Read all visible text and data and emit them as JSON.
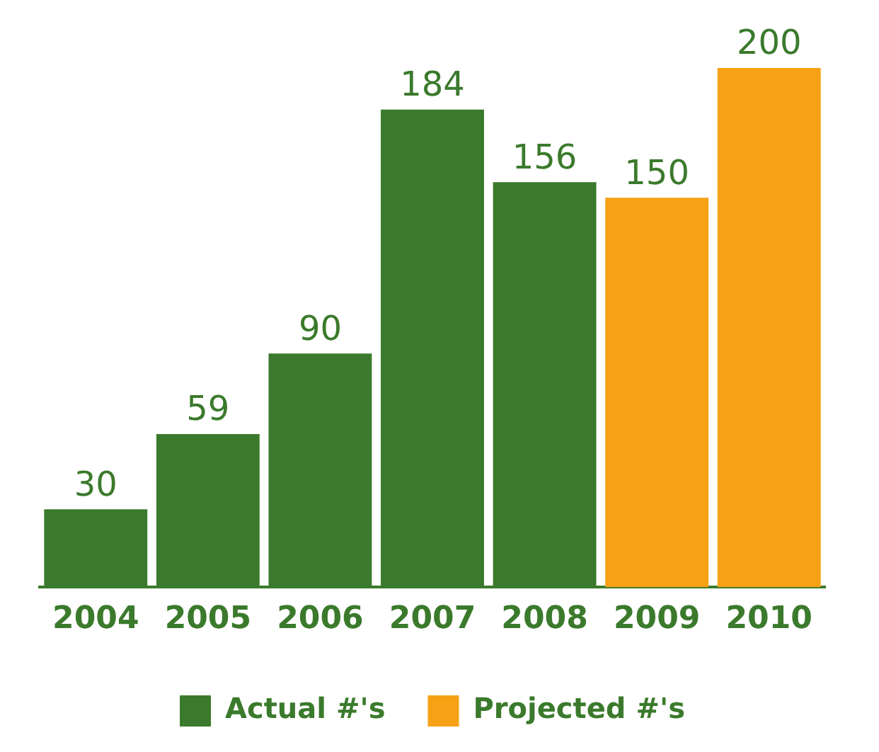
{
  "chart_data": {
    "type": "bar",
    "categories": [
      "2004",
      "2005",
      "2006",
      "2007",
      "2008",
      "2009",
      "2010"
    ],
    "series": [
      {
        "name": "Actual #'s",
        "color": "#3b7a2c",
        "values": [
          30,
          59,
          90,
          184,
          156,
          null,
          null
        ]
      },
      {
        "name": "Projected #'s",
        "color": "#f7a115",
        "values": [
          null,
          null,
          null,
          null,
          null,
          150,
          200
        ]
      }
    ],
    "data_labels": true,
    "legend": "bottom"
  }
}
